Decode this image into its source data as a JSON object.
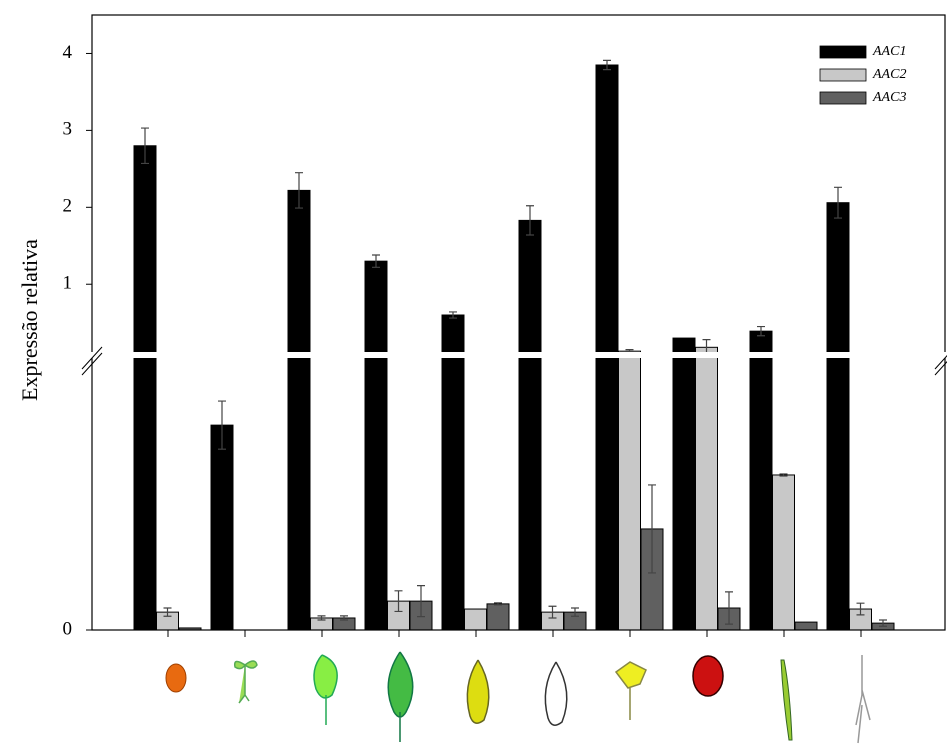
{
  "chart_data": {
    "type": "bar",
    "y_label": "Expressão relativa",
    "categories": [
      null,
      null,
      null,
      null,
      null,
      null,
      null,
      null,
      null,
      null
    ],
    "series": [
      {
        "name": "AAC1",
        "color": "#000000",
        "values": [
          2.8,
          0.0596,
          2.22,
          1.3,
          0.6,
          1.83,
          3.85,
          0.3,
          0.39,
          2.06
        ],
        "errors": [
          0.23,
          0.007,
          0.23,
          0.08,
          0.04,
          0.19,
          0.06,
          0,
          0.06,
          0.2
        ]
      },
      {
        "name": "AAC2",
        "color": "#c8c8c8",
        "values": [
          0.0052,
          0,
          0.0035,
          0.0084,
          0.0061,
          0.0052,
          0.13,
          0.18,
          0.0451,
          0.0061
        ],
        "errors": [
          0.0012,
          0,
          0.0006,
          0.003,
          0,
          0.0017,
          0.02,
          0.1,
          0.0003,
          0.0017
        ]
      },
      {
        "name": "AAC3",
        "color": "#606060",
        "values": [
          0.0006,
          0,
          0.0035,
          0.0084,
          0.0076,
          0.0052,
          0.0294,
          0.0064,
          0.0023,
          0.002
        ],
        "errors": [
          0,
          0,
          0.0006,
          0.0045,
          0.0003,
          0.0012,
          0.0128,
          0.0047,
          0,
          0.0009
        ]
      }
    ],
    "ylim": [
      0,
      4.5
    ],
    "y_break": 0.08,
    "yticks": [
      0,
      1,
      2,
      3,
      4
    ],
    "grid": false,
    "legend": "upper right"
  }
}
